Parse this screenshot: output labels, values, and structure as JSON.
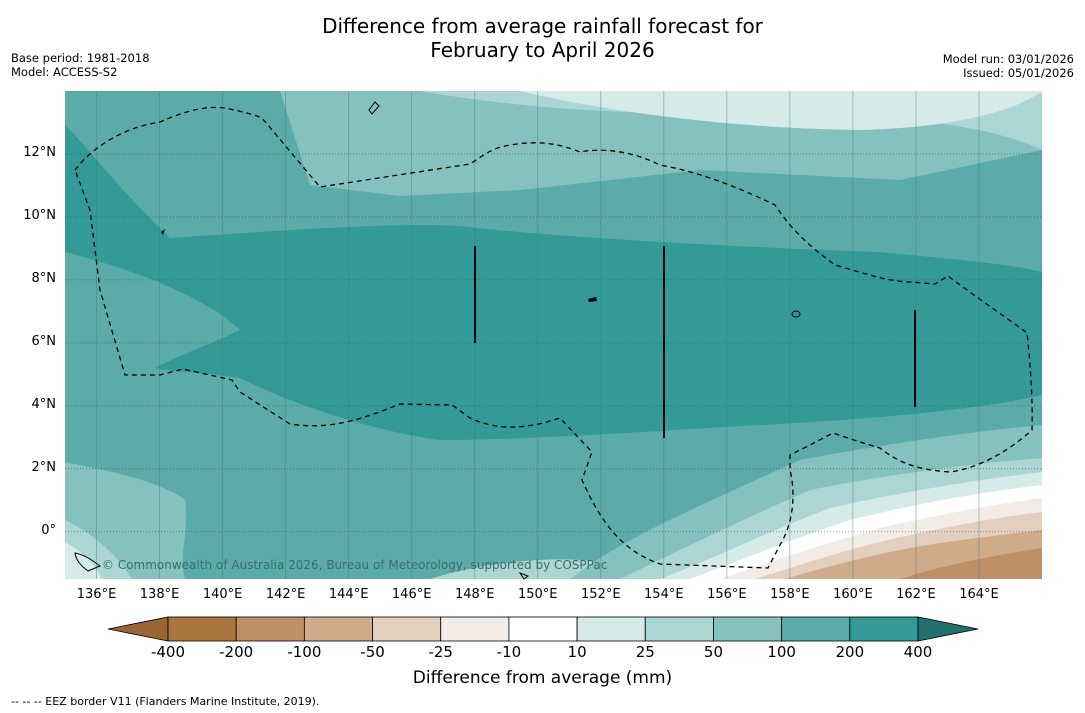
{
  "title_line1": "Difference from average rainfall forecast for",
  "title_line2": "February to April 2026",
  "meta_left": {
    "base_period": "Base period: 1981-2018",
    "model": "Model: ACCESS-S2"
  },
  "meta_right": {
    "model_run": "Model run: 03/01/2026",
    "issued": "Issued: 05/01/2026"
  },
  "copyright": "© Commonwealth of Australia 2026, Bureau of Meteorology, supported by COSPPac",
  "footnote": "--  --  -- EEZ border V11 (Flanders Marine Institute, 2019).",
  "map": {
    "lon_range": [
      135,
      166
    ],
    "lat_range": [
      -1.5,
      14
    ],
    "lon_ticks": [
      {
        "value": 136,
        "label": "136°E"
      },
      {
        "value": 138,
        "label": "138°E"
      },
      {
        "value": 140,
        "label": "140°E"
      },
      {
        "value": 142,
        "label": "142°E"
      },
      {
        "value": 144,
        "label": "144°E"
      },
      {
        "value": 146,
        "label": "146°E"
      },
      {
        "value": 148,
        "label": "148°E"
      },
      {
        "value": 150,
        "label": "150°E"
      },
      {
        "value": 152,
        "label": "152°E"
      },
      {
        "value": 154,
        "label": "154°E"
      },
      {
        "value": 156,
        "label": "156°E"
      },
      {
        "value": 158,
        "label": "158°E"
      },
      {
        "value": 160,
        "label": "160°E"
      },
      {
        "value": 162,
        "label": "162°E"
      },
      {
        "value": 164,
        "label": "164°E"
      }
    ],
    "lat_ticks": [
      {
        "value": 12,
        "label": "12°N"
      },
      {
        "value": 10,
        "label": "10°N"
      },
      {
        "value": 8,
        "label": "8°N"
      },
      {
        "value": 6,
        "label": "6°N"
      },
      {
        "value": 4,
        "label": "4°N"
      },
      {
        "value": 2,
        "label": "2°N"
      },
      {
        "value": 0,
        "label": "0°"
      }
    ],
    "colors": {
      "deep_teal": "#339a98",
      "teal": "#5baca9",
      "mid_teal": "#85c1bf",
      "light_teal": "#acd6d4",
      "pale_teal": "#d5eae9",
      "white": "#ffffff",
      "pale_brown": "#f2ebe6",
      "light_brown": "#e3cfbe",
      "tan": "#cfab89",
      "brown": "#be9068"
    }
  },
  "colorbar": {
    "title": "Difference from average (mm)",
    "labels": [
      "-400",
      "-200",
      "-100",
      "-50",
      "-25",
      "-10",
      "10",
      "25",
      "50",
      "100",
      "200",
      "400"
    ],
    "colors": [
      "#a9763f",
      "#be9068",
      "#cfab89",
      "#e3cfbe",
      "#f2ebe6",
      "#ffffff",
      "#d5eae9",
      "#acd6d4",
      "#85c1bf",
      "#5baca9",
      "#339a98",
      "#2c8583"
    ],
    "low_extend_color": "#9a6434",
    "high_extend_color": "#23706e"
  }
}
